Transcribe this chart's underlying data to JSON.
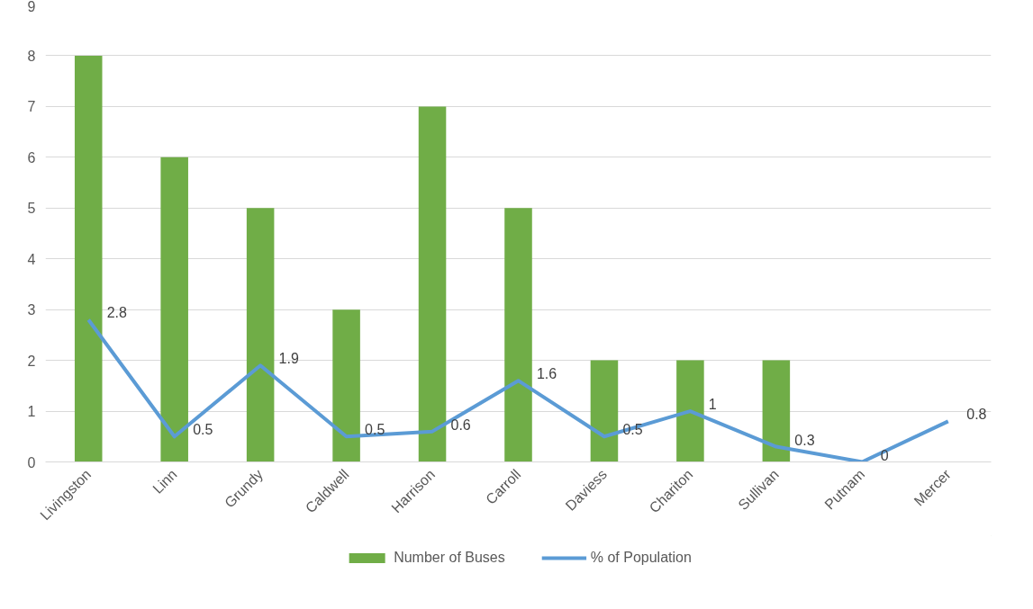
{
  "chart_data": {
    "type": "bar",
    "categories": [
      "Livingston",
      "Linn",
      "Grundy",
      "Caldwell",
      "Harrison",
      "Carroll",
      "Daviess",
      "Chariton",
      "Sullivan",
      "Putnam",
      "Mercer"
    ],
    "series": [
      {
        "name": "Number of Buses",
        "color": "#70ad47",
        "values": [
          8,
          6,
          5,
          3,
          7,
          5,
          2,
          2,
          2,
          0,
          0
        ]
      },
      {
        "name": "% of Population",
        "type": "line",
        "color": "#5b9bd5",
        "values": [
          2.8,
          0.5,
          1.9,
          0.5,
          0.6,
          1.6,
          0.5,
          1,
          0.3,
          0,
          0.8
        ],
        "value_labels": [
          "2.8",
          "0.5",
          "1.9",
          "0.5",
          "0.6",
          "1.6",
          "0.5",
          "1",
          "0.3",
          "0",
          "0.8"
        ]
      }
    ],
    "ylim": [
      0,
      9
    ],
    "yticks": [
      0,
      1,
      2,
      3,
      4,
      5,
      6,
      7,
      8,
      9
    ],
    "grid": "y",
    "legend": "bottom",
    "marker": "none",
    "line_style": "solid"
  }
}
